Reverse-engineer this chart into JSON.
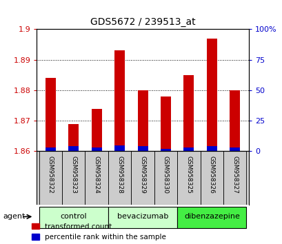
{
  "title": "GDS5672 / 239513_at",
  "samples": [
    "GSM958322",
    "GSM958323",
    "GSM958324",
    "GSM958328",
    "GSM958329",
    "GSM958330",
    "GSM958325",
    "GSM958326",
    "GSM958327"
  ],
  "transformed_count": [
    1.884,
    1.869,
    1.874,
    1.893,
    1.88,
    1.878,
    1.885,
    1.897,
    1.88
  ],
  "percentile_rank": [
    3,
    4,
    3,
    5,
    4,
    2,
    3,
    4,
    3
  ],
  "ylim_left": [
    1.86,
    1.9
  ],
  "ylim_right": [
    0,
    100
  ],
  "yticks_left": [
    1.86,
    1.87,
    1.88,
    1.89,
    1.9
  ],
  "yticks_right": [
    0,
    25,
    50,
    75,
    100
  ],
  "ytick_labels_right": [
    "0",
    "25",
    "50",
    "75",
    "100%"
  ],
  "bar_color_red": "#cc0000",
  "bar_color_blue": "#0000cc",
  "groups": [
    {
      "label": "control",
      "indices": [
        0,
        1,
        2
      ],
      "color": "#ccffcc"
    },
    {
      "label": "bevacizumab",
      "indices": [
        3,
        4,
        5
      ],
      "color": "#ccffcc"
    },
    {
      "label": "dibenzazepine",
      "indices": [
        6,
        7,
        8
      ],
      "color": "#44ee44"
    }
  ],
  "agent_label": "agent",
  "legend_red": "transformed count",
  "legend_blue": "percentile rank within the sample",
  "background_color": "#ffffff",
  "sample_label_bg": "#cccccc",
  "bar_width": 0.45,
  "n_samples": 9
}
